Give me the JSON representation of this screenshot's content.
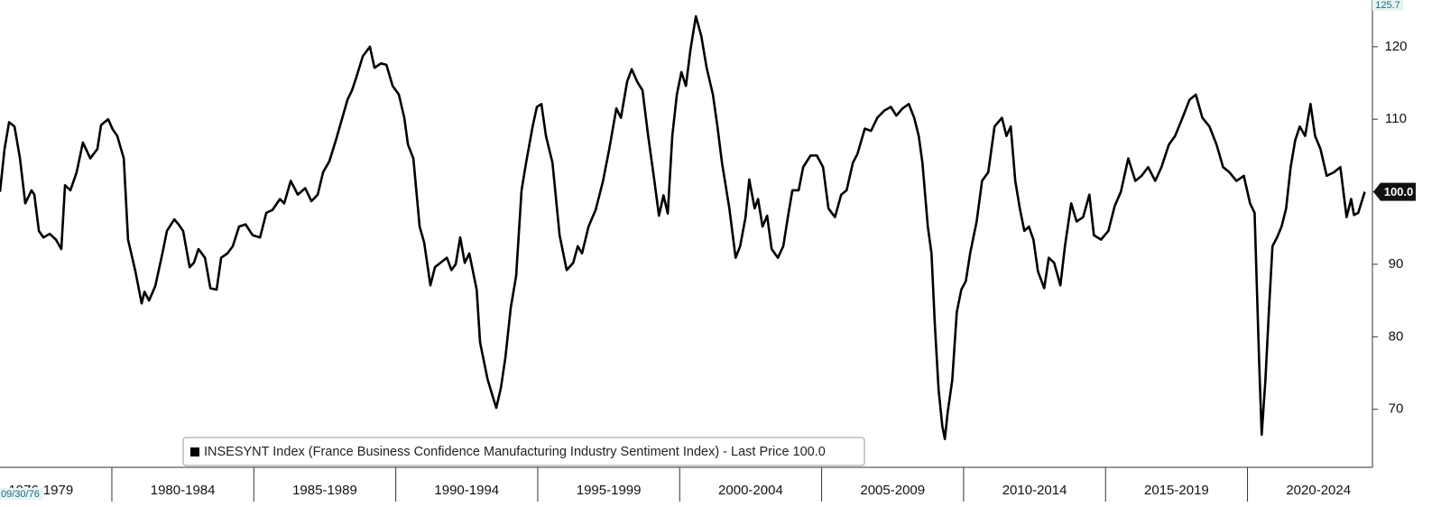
{
  "chart_data": {
    "type": "line",
    "start_date": "09/30/76",
    "x_periods": [
      "1976-1979",
      "1980-1984",
      "1985-1989",
      "1990-1994",
      "1995-1999",
      "2000-2004",
      "2005-2009",
      "2010-2014",
      "2015-2019",
      "2020-2024"
    ],
    "xlim": [
      1976.06,
      2024.4
    ],
    "xticks": [
      1980,
      1985,
      1990,
      1995,
      2000,
      2005,
      2010,
      2015,
      2020
    ],
    "ylim": [
      62,
      125.7
    ],
    "yticks": [
      70,
      80,
      90,
      100,
      110,
      120
    ],
    "last_price": {
      "value": 100,
      "label": "100.0"
    },
    "legend": "bottom",
    "series": [
      {
        "name": "INSESYNT Index (France Business Confidence Manufacturing Industry Sentiment Index) - Last Price 100.0",
        "color": "#000000",
        "x": [
          1976.06,
          1976.22,
          1976.38,
          1976.57,
          1976.76,
          1976.95,
          1977.17,
          1977.27,
          1977.43,
          1977.59,
          1977.81,
          1978.03,
          1978.22,
          1978.35,
          1978.54,
          1978.76,
          1978.98,
          1979.24,
          1979.49,
          1979.62,
          1979.87,
          1980.03,
          1980.19,
          1980.42,
          1980.57,
          1980.83,
          1981.05,
          1981.15,
          1981.31,
          1981.53,
          1981.78,
          1981.94,
          1982.2,
          1982.35,
          1982.51,
          1982.74,
          1982.89,
          1983.05,
          1983.28,
          1983.47,
          1983.69,
          1983.85,
          1984.07,
          1984.26,
          1984.48,
          1984.71,
          1984.96,
          1985.22,
          1985.44,
          1985.66,
          1985.92,
          1986.07,
          1986.3,
          1986.55,
          1986.81,
          1987.03,
          1987.25,
          1987.44,
          1987.66,
          1987.89,
          1988.14,
          1988.3,
          1988.46,
          1988.62,
          1988.84,
          1989.09,
          1989.25,
          1989.48,
          1989.67,
          1989.89,
          1990.11,
          1990.3,
          1990.43,
          1990.62,
          1990.84,
          1991,
          1991.22,
          1991.38,
          1991.57,
          1991.8,
          1991.96,
          1992.11,
          1992.27,
          1992.43,
          1992.59,
          1992.85,
          1992.97,
          1993.23,
          1993.39,
          1993.54,
          1993.7,
          1993.86,
          1994.05,
          1994.24,
          1994.43,
          1994.59,
          1994.82,
          1994.97,
          1995.13,
          1995.29,
          1995.52,
          1995.77,
          1996.02,
          1996.25,
          1996.41,
          1996.56,
          1996.79,
          1997.04,
          1997.3,
          1997.52,
          1997.77,
          1997.93,
          1998.15,
          1998.31,
          1998.5,
          1998.69,
          1998.89,
          1999.11,
          1999.27,
          1999.43,
          1999.58,
          1999.74,
          1999.9,
          2000.06,
          2000.22,
          2000.38,
          2000.57,
          2000.76,
          2000.95,
          2001.17,
          2001.33,
          2001.49,
          2001.75,
          2001.97,
          2002.13,
          2002.32,
          2002.45,
          2002.64,
          2002.76,
          2002.92,
          2003.08,
          2003.24,
          2003.46,
          2003.65,
          2003.81,
          2003.97,
          2004.19,
          2004.35,
          2004.61,
          2004.83,
          2005.05,
          2005.24,
          2005.47,
          2005.69,
          2005.88,
          2006.1,
          2006.26,
          2006.52,
          2006.74,
          2006.96,
          2007.21,
          2007.44,
          2007.63,
          2007.85,
          2008.07,
          2008.26,
          2008.42,
          2008.55,
          2008.74,
          2008.87,
          2008.99,
          2009.12,
          2009.25,
          2009.34,
          2009.44,
          2009.6,
          2009.76,
          2009.92,
          2010.08,
          2010.23,
          2010.46,
          2010.65,
          2010.87,
          2011.09,
          2011.35,
          2011.51,
          2011.66,
          2011.82,
          2011.98,
          2012.14,
          2012.3,
          2012.46,
          2012.62,
          2012.84,
          2013,
          2013.19,
          2013.41,
          2013.57,
          2013.79,
          2013.98,
          2014.21,
          2014.43,
          2014.59,
          2014.84,
          2015.1,
          2015.32,
          2015.54,
          2015.8,
          2016.05,
          2016.27,
          2016.5,
          2016.75,
          2016.97,
          2017.23,
          2017.45,
          2017.71,
          2017.96,
          2018.18,
          2018.41,
          2018.66,
          2018.91,
          2019.14,
          2019.36,
          2019.61,
          2019.87,
          2020.09,
          2020.25,
          2020.41,
          2020.5,
          2020.63,
          2020.76,
          2020.88,
          2021.04,
          2021.2,
          2021.36,
          2021.52,
          2021.68,
          2021.84,
          2022.03,
          2022.22,
          2022.38,
          2022.57,
          2022.79,
          2023.05,
          2023.27,
          2023.49,
          2023.65,
          2023.75,
          2023.9,
          2024.13
        ],
        "values": [
          100,
          105.9,
          109.6,
          109,
          104.7,
          98.4,
          100.2,
          99.6,
          94.6,
          93.7,
          94.2,
          93.4,
          92.1,
          100.9,
          100.2,
          102.7,
          106.8,
          104.6,
          105.9,
          109.2,
          110,
          108.6,
          107.7,
          104.6,
          93.4,
          89,
          84.6,
          86.2,
          85,
          87,
          91.5,
          94.6,
          96.2,
          95.5,
          94.6,
          89.6,
          90.2,
          92.1,
          90.9,
          86.7,
          86.5,
          90.9,
          91.5,
          92.5,
          95.2,
          95.5,
          94,
          93.7,
          97.1,
          97.5,
          99,
          98.4,
          101.5,
          99.6,
          100.5,
          98.7,
          99.6,
          102.7,
          104.2,
          107.1,
          110.5,
          112.7,
          114,
          115.9,
          118.7,
          120,
          117.1,
          117.7,
          117.5,
          114.6,
          113.4,
          110.2,
          106.5,
          104.6,
          95.2,
          93,
          87.1,
          89.6,
          90.2,
          90.9,
          89.2,
          90,
          93.7,
          90.2,
          91.5,
          86.5,
          79.2,
          74.2,
          72.1,
          70.2,
          72.9,
          77.1,
          84,
          88.4,
          100.2,
          104,
          109,
          111.7,
          112.1,
          107.7,
          104,
          94,
          89.2,
          90.2,
          92.5,
          91.5,
          95.2,
          97.5,
          101.5,
          105.9,
          111.5,
          110.2,
          115.2,
          116.9,
          115.2,
          114,
          107.7,
          101.5,
          96.7,
          99.5,
          97,
          107.7,
          113.4,
          116.5,
          114.6,
          119.6,
          124.2,
          121.5,
          117.1,
          113.4,
          109,
          104,
          97.7,
          90.9,
          92.5,
          96.5,
          101.7,
          97.7,
          99,
          95.2,
          96.7,
          92.1,
          90.9,
          92.5,
          96.5,
          100.2,
          100.2,
          103.4,
          105,
          105,
          103.4,
          97.7,
          96.5,
          99.6,
          100.2,
          104,
          105.2,
          108.7,
          108.4,
          110.2,
          111.2,
          111.7,
          110.5,
          111.5,
          112.1,
          110.2,
          107.7,
          104,
          95.2,
          91.5,
          81.5,
          72.7,
          67.7,
          65.9,
          69.6,
          74,
          83.4,
          86.5,
          87.7,
          91.5,
          95.9,
          101.5,
          102.7,
          109,
          110.2,
          107.7,
          109,
          101.5,
          97.7,
          94.6,
          95.2,
          93.4,
          89,
          86.7,
          90.9,
          90.2,
          87.1,
          92.5,
          98.4,
          95.9,
          96.5,
          99.6,
          94,
          93.4,
          94.6,
          98,
          100,
          104.6,
          101.5,
          102.2,
          103.4,
          101.5,
          103.4,
          106.5,
          107.7,
          110.2,
          112.7,
          113.4,
          110.2,
          109,
          106.5,
          103.4,
          102.7,
          101.5,
          102.2,
          98.4,
          97.1,
          76.5,
          66.5,
          74,
          84,
          92.5,
          93.7,
          95.2,
          97.7,
          103.4,
          107.1,
          109,
          107.7,
          112.1,
          107.7,
          105.9,
          102.2,
          102.7,
          103.4,
          96.5,
          99,
          96.8,
          97.1,
          100
        ]
      }
    ]
  }
}
